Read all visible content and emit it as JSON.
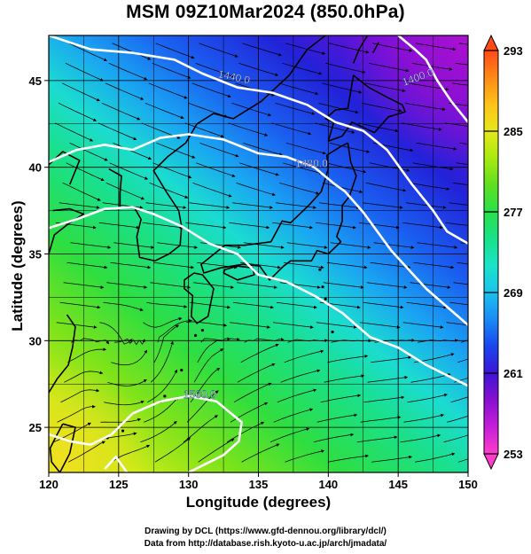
{
  "title": "MSM 09Z10Mar2024 (850.0hPa)",
  "chart_data": {
    "type": "map",
    "projection": "equirectangular",
    "x_axis": {
      "label": "Longitude (degrees)",
      "range": [
        120,
        150
      ],
      "ticks": [
        120,
        125,
        130,
        135,
        140,
        145,
        150
      ]
    },
    "y_axis": {
      "label": "Latitude  (degrees)",
      "range": [
        22.4,
        47.6
      ],
      "ticks": [
        25,
        30,
        35,
        40,
        45
      ]
    },
    "grid": true,
    "background_field": "temperature (shaded)",
    "overlay_field": "wind streamlines",
    "contours": [
      {
        "label": "1400.0",
        "label_lon": 146.5,
        "label_lat": 45.0,
        "path": [
          [
            145.0,
            47.6
          ],
          [
            146.2,
            46.8
          ],
          [
            147.0,
            46.2
          ],
          [
            147.8,
            45.0
          ],
          [
            148.8,
            43.8
          ],
          [
            150,
            42.6
          ]
        ]
      },
      {
        "label": "1440.0",
        "label_lon": 133.2,
        "label_lat": 45.0,
        "path": [
          [
            120,
            47.6
          ],
          [
            123.0,
            46.8
          ],
          [
            126.0,
            46.6
          ],
          [
            129.0,
            46.2
          ],
          [
            131.0,
            45.4
          ],
          [
            133.5,
            44.6
          ],
          [
            136.0,
            44.3
          ],
          [
            138.5,
            43.6
          ],
          [
            140.5,
            42.6
          ],
          [
            142.5,
            42.1
          ],
          [
            144.2,
            41.0
          ],
          [
            146.0,
            39.0
          ],
          [
            147.5,
            37.5
          ],
          [
            148.5,
            36.3
          ],
          [
            150,
            35.6
          ]
        ]
      },
      {
        "label": "1480.0",
        "label_lon": 138.8,
        "label_lat": 40.0,
        "path": [
          [
            120,
            40.3
          ],
          [
            122.0,
            41.0
          ],
          [
            124.0,
            41.3
          ],
          [
            126.0,
            41.0
          ],
          [
            128.0,
            41.7
          ],
          [
            130.0,
            41.9
          ],
          [
            132.5,
            41.6
          ],
          [
            135.0,
            40.8
          ],
          [
            137.0,
            40.6
          ],
          [
            139.0,
            40.0
          ],
          [
            140.5,
            39.0
          ],
          [
            141.2,
            38.6
          ],
          [
            142.5,
            37.4
          ],
          [
            144.5,
            35.2
          ],
          [
            147.0,
            33.0
          ],
          [
            149.0,
            31.6
          ],
          [
            150,
            30.9
          ]
        ]
      },
      {
        "label": "",
        "label_lon": 0,
        "label_lat": 0,
        "path": [
          [
            120,
            36.5
          ],
          [
            122.0,
            37.0
          ],
          [
            124.0,
            37.6
          ],
          [
            126.0,
            37.7
          ],
          [
            127.5,
            37.3
          ],
          [
            129.5,
            36.6
          ],
          [
            131.5,
            35.6
          ],
          [
            133.5,
            35.0
          ],
          [
            135.0,
            33.8
          ],
          [
            137.0,
            33.4
          ],
          [
            139.0,
            32.6
          ],
          [
            141.0,
            31.6
          ],
          [
            143.0,
            30.2
          ],
          [
            145.0,
            29.6
          ],
          [
            147.0,
            28.6
          ],
          [
            149.0,
            27.8
          ],
          [
            150,
            27.4
          ]
        ]
      },
      {
        "label": "1560.0",
        "label_lon": 130.8,
        "label_lat": 26.7,
        "path": [
          [
            120,
            24.6
          ],
          [
            121.5,
            24.2
          ],
          [
            123.0,
            24.0
          ],
          [
            124.5,
            24.6
          ],
          [
            126.0,
            25.8
          ],
          [
            128.0,
            26.5
          ],
          [
            130.0,
            26.8
          ],
          [
            132.0,
            26.5
          ],
          [
            133.8,
            25.3
          ],
          [
            133.6,
            24.2
          ],
          [
            132.5,
            23.4
          ],
          [
            131.0,
            22.8
          ],
          [
            130.0,
            22.4
          ]
        ]
      },
      {
        "label": "",
        "label_lon": 0,
        "label_lat": 0,
        "path": [
          [
            124.0,
            22.6
          ],
          [
            124.8,
            23.3
          ],
          [
            125.6,
            22.4
          ]
        ]
      }
    ],
    "colorbar": {
      "ticks": [
        253,
        261,
        269,
        277,
        285,
        293
      ],
      "range": [
        253,
        293
      ],
      "colors": [
        "#ff3ccc",
        "#c41fd8",
        "#8a0fd0",
        "#3d15d6",
        "#1a45f0",
        "#1a8af5",
        "#19c3ee",
        "#1be3c8",
        "#18e28a",
        "#2ae04a",
        "#5fe020",
        "#a8ea10",
        "#e6e81a",
        "#ffc21a",
        "#ff8a14",
        "#ff4a18"
      ]
    }
  },
  "credits": {
    "line1": "Drawing by DCL (https://www.gfd-dennou.org/library/dcl/)",
    "line2": "Data from http://database.rish.kyoto-u.ac.jp/arch/jmadata/"
  }
}
